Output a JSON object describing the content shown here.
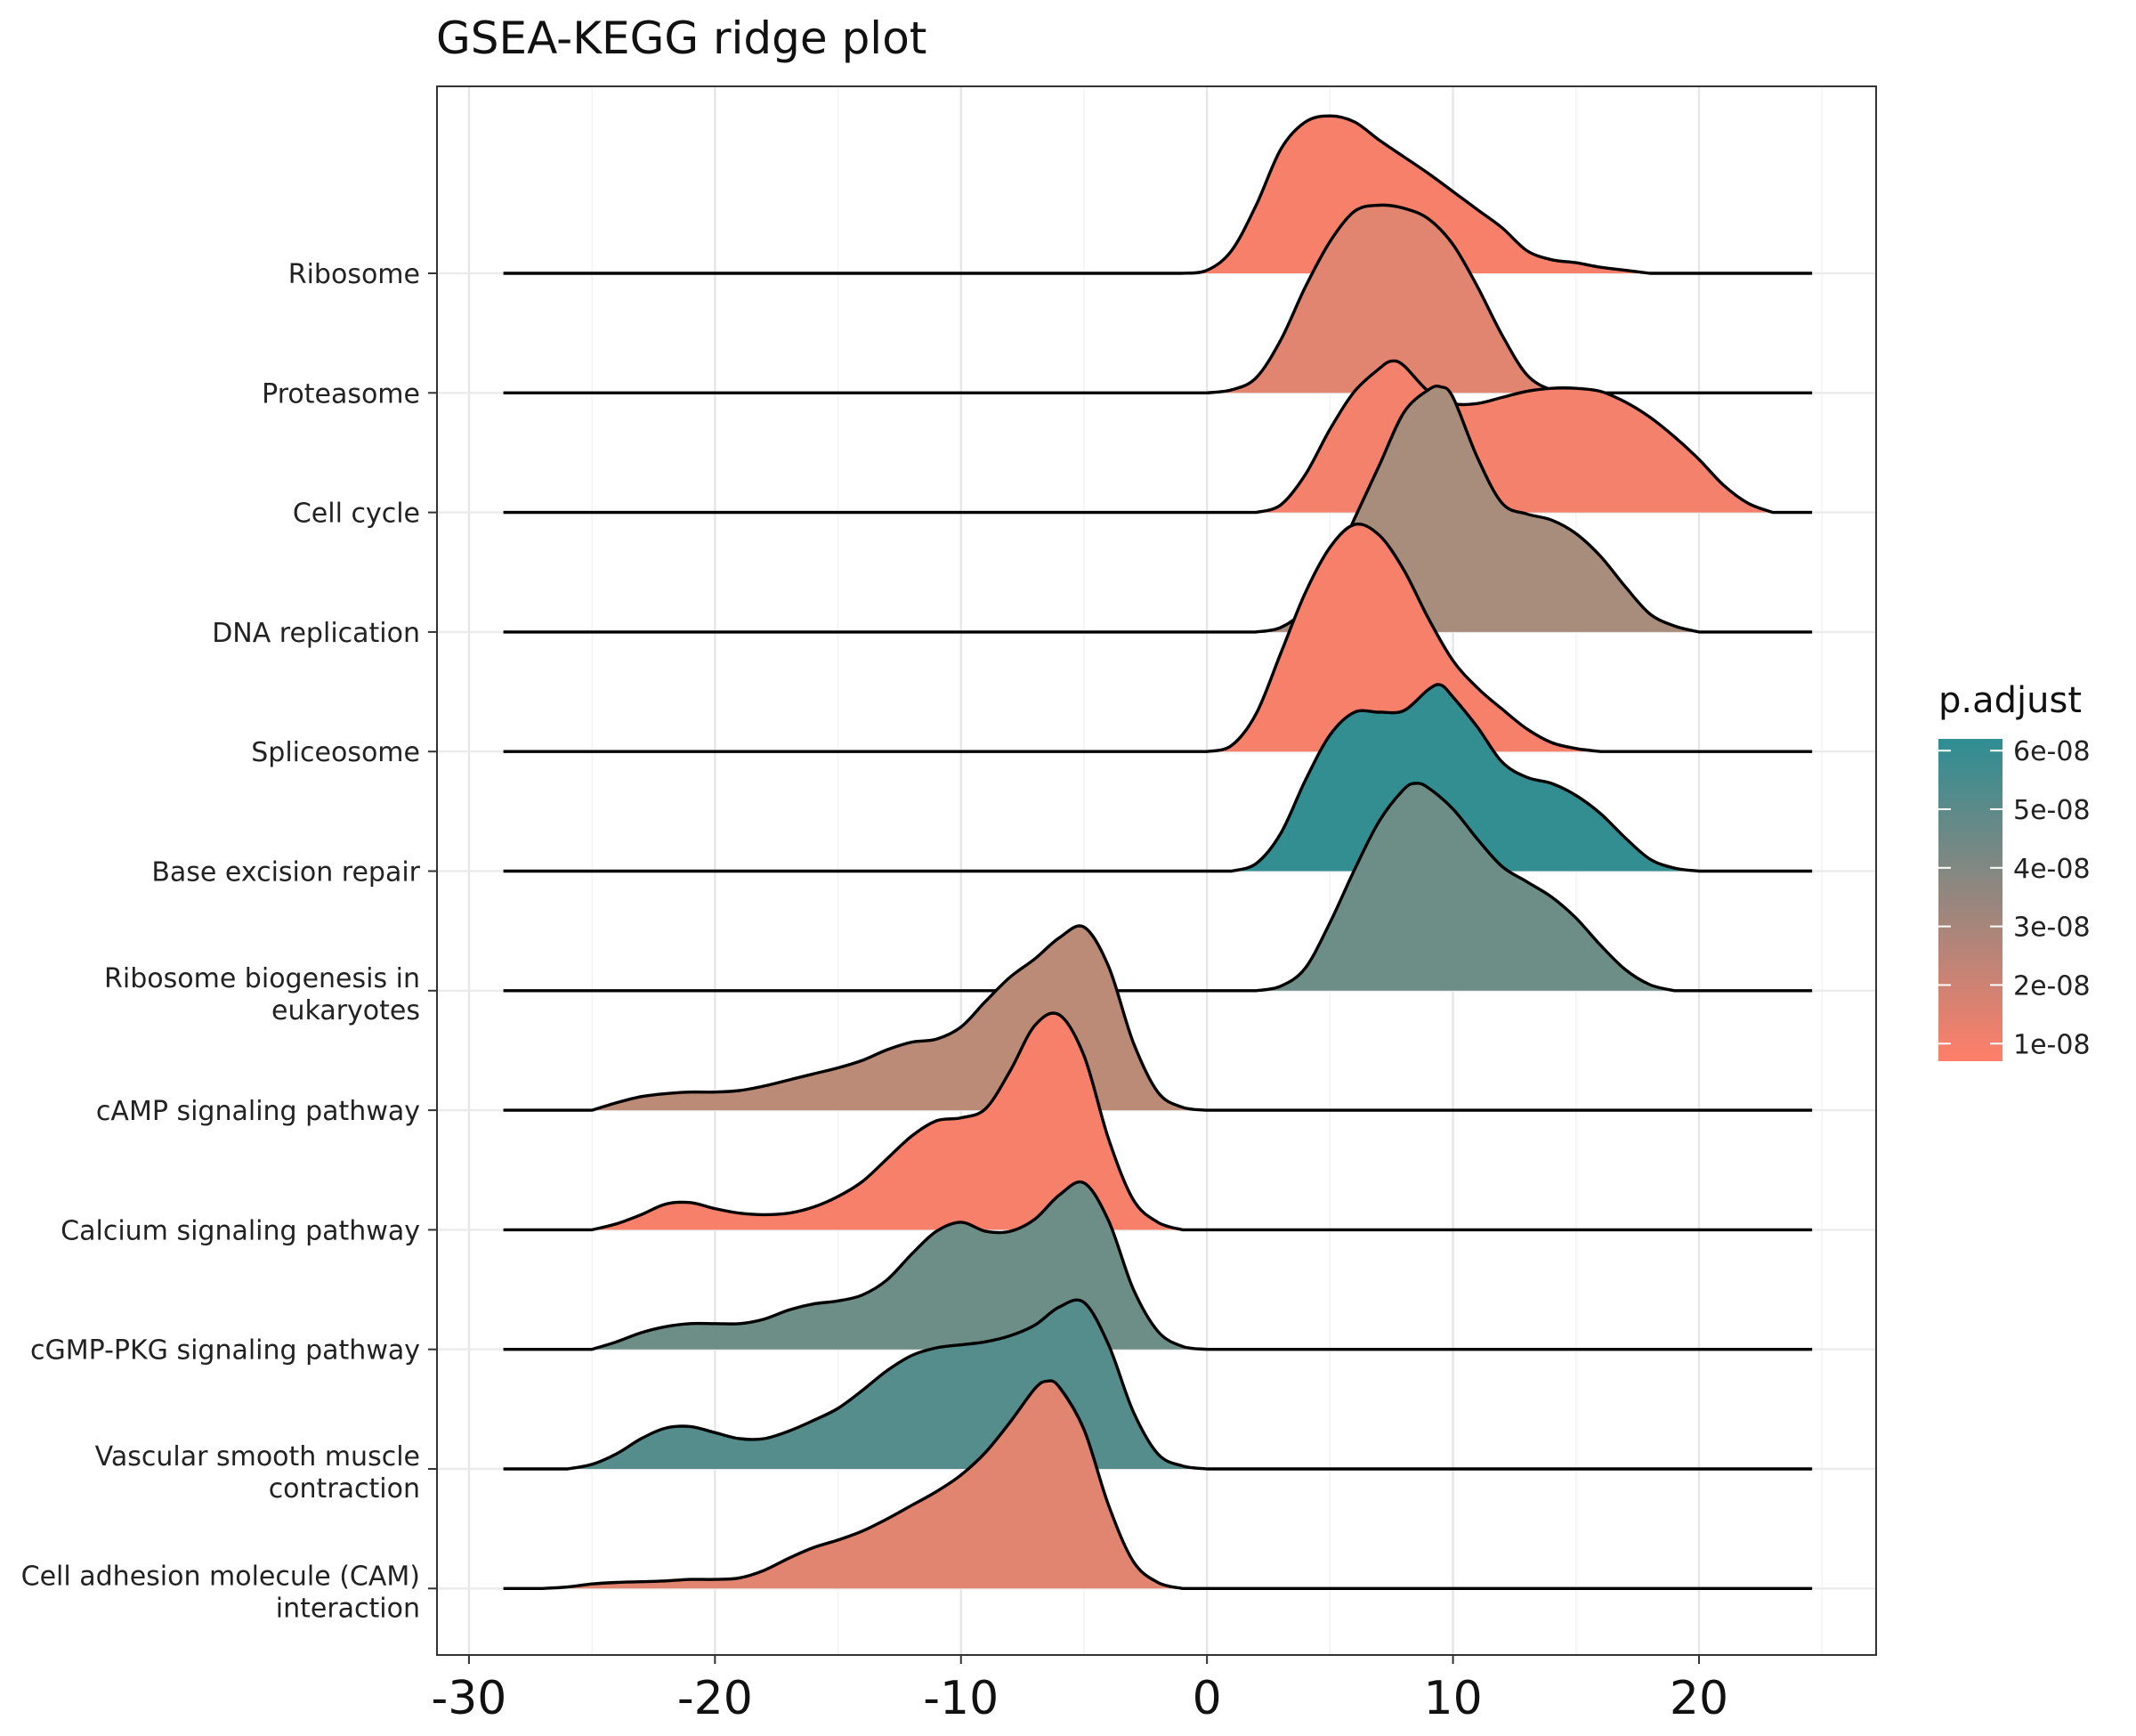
{
  "chart_data": {
    "type": "ridge",
    "title": "GSEA-KEGG ridge plot",
    "xlabel": "",
    "ylabel": "",
    "xlim": [
      -31.3,
      27.2
    ],
    "x_ticks": [
      -30,
      -20,
      -10,
      0,
      10,
      20
    ],
    "x_tick_labels": [
      "-30",
      "-20",
      "-10",
      "0",
      "10",
      "20"
    ],
    "x_range_lines": [
      -28.6,
      24.6
    ],
    "grid": true,
    "legend": {
      "title": "p.adjust",
      "placement": "right",
      "ticks": [
        6e-08,
        5e-08,
        4e-08,
        3e-08,
        2e-08,
        1e-08
      ],
      "tick_labels": [
        "6e-08",
        "5e-08",
        "4e-08",
        "3e-08",
        "2e-08",
        "1e-08"
      ],
      "range": [
        7e-09,
        6.2e-08
      ],
      "color_low": "#FF7F69",
      "color_high": "#2E8E93"
    },
    "categories": [
      "Ribosome",
      "Proteasome",
      "Cell cycle",
      "DNA replication",
      "Spliceosome",
      "Base excision repair",
      "Ribosome biogenesis in\neukaryotes",
      "cAMP signaling pathway",
      "Calcium signaling pathway",
      "cGMP-PKG signaling pathway",
      "Vascular smooth muscle\ncontraction",
      "Cell adhesion molecule (CAM)\ninteraction"
    ],
    "series": [
      {
        "category": "Ribosome",
        "p_adjust": 1e-08,
        "density": [
          [
            -1,
            0
          ],
          [
            0,
            0.02
          ],
          [
            1,
            0.15
          ],
          [
            2,
            0.45
          ],
          [
            3,
            0.82
          ],
          [
            4,
            1.0
          ],
          [
            5,
            1.04
          ],
          [
            6,
            1.0
          ],
          [
            7,
            0.88
          ],
          [
            8,
            0.77
          ],
          [
            9,
            0.66
          ],
          [
            10,
            0.54
          ],
          [
            11,
            0.42
          ],
          [
            12,
            0.3
          ],
          [
            13,
            0.15
          ],
          [
            14,
            0.09
          ],
          [
            15,
            0.07
          ],
          [
            16,
            0.04
          ],
          [
            17,
            0.02
          ],
          [
            18,
            0.0
          ]
        ]
      },
      {
        "category": "Proteasome",
        "p_adjust": 1.8e-08,
        "density": [
          [
            0,
            0
          ],
          [
            1,
            0.02
          ],
          [
            2,
            0.1
          ],
          [
            3,
            0.35
          ],
          [
            4,
            0.7
          ],
          [
            5,
            1.0
          ],
          [
            6,
            1.2
          ],
          [
            7,
            1.24
          ],
          [
            8,
            1.22
          ],
          [
            9,
            1.15
          ],
          [
            10,
            0.98
          ],
          [
            11,
            0.7
          ],
          [
            12,
            0.38
          ],
          [
            13,
            0.12
          ],
          [
            14,
            0.02
          ],
          [
            15,
            0.0
          ]
        ]
      },
      {
        "category": "Cell cycle",
        "p_adjust": 1.1e-08,
        "density": [
          [
            2,
            0
          ],
          [
            3,
            0.05
          ],
          [
            4,
            0.25
          ],
          [
            5,
            0.55
          ],
          [
            6,
            0.8
          ],
          [
            7,
            0.95
          ],
          [
            7.5,
            1.0
          ],
          [
            8,
            0.97
          ],
          [
            9,
            0.8
          ],
          [
            10,
            0.72
          ],
          [
            11,
            0.72
          ],
          [
            12,
            0.76
          ],
          [
            13,
            0.8
          ],
          [
            14,
            0.82
          ],
          [
            15,
            0.82
          ],
          [
            16,
            0.8
          ],
          [
            17,
            0.73
          ],
          [
            18,
            0.63
          ],
          [
            19,
            0.5
          ],
          [
            20,
            0.35
          ],
          [
            21,
            0.18
          ],
          [
            22,
            0.06
          ],
          [
            23,
            0.0
          ]
        ]
      },
      {
        "category": "DNA replication",
        "p_adjust": 3.7e-08,
        "density": [
          [
            2,
            0
          ],
          [
            3,
            0.03
          ],
          [
            4,
            0.15
          ],
          [
            5,
            0.4
          ],
          [
            6,
            0.75
          ],
          [
            7,
            1.1
          ],
          [
            8,
            1.45
          ],
          [
            9,
            1.6
          ],
          [
            9.5,
            1.62
          ],
          [
            10,
            1.55
          ],
          [
            11,
            1.15
          ],
          [
            12,
            0.85
          ],
          [
            13,
            0.78
          ],
          [
            14,
            0.74
          ],
          [
            15,
            0.65
          ],
          [
            16,
            0.5
          ],
          [
            17,
            0.3
          ],
          [
            18,
            0.12
          ],
          [
            19,
            0.04
          ],
          [
            20,
            0.0
          ]
        ]
      },
      {
        "category": "Spliceosome",
        "p_adjust": 1e-08,
        "density": [
          [
            0,
            0
          ],
          [
            1,
            0.04
          ],
          [
            2,
            0.25
          ],
          [
            3,
            0.65
          ],
          [
            4,
            1.05
          ],
          [
            5,
            1.35
          ],
          [
            6,
            1.5
          ],
          [
            7,
            1.43
          ],
          [
            8,
            1.2
          ],
          [
            9,
            0.88
          ],
          [
            10,
            0.6
          ],
          [
            11,
            0.42
          ],
          [
            12,
            0.28
          ],
          [
            13,
            0.15
          ],
          [
            14,
            0.06
          ],
          [
            15,
            0.02
          ],
          [
            16,
            0.0
          ]
        ]
      },
      {
        "category": "Base excision repair",
        "p_adjust": 6.1e-08,
        "density": [
          [
            1,
            0
          ],
          [
            2,
            0.05
          ],
          [
            3,
            0.25
          ],
          [
            4,
            0.6
          ],
          [
            5,
            0.9
          ],
          [
            6,
            1.05
          ],
          [
            7,
            1.05
          ],
          [
            8,
            1.06
          ],
          [
            9,
            1.2
          ],
          [
            9.5,
            1.23
          ],
          [
            10,
            1.15
          ],
          [
            11,
            0.95
          ],
          [
            12,
            0.72
          ],
          [
            13,
            0.62
          ],
          [
            14,
            0.58
          ],
          [
            15,
            0.5
          ],
          [
            16,
            0.38
          ],
          [
            17,
            0.22
          ],
          [
            18,
            0.08
          ],
          [
            19,
            0.02
          ],
          [
            20,
            0.0
          ]
        ]
      },
      {
        "category": "Ribosome biogenesis in\neukaryotes",
        "p_adjust": 4.9e-08,
        "density": [
          [
            2,
            0
          ],
          [
            3,
            0.03
          ],
          [
            4,
            0.15
          ],
          [
            5,
            0.45
          ],
          [
            6,
            0.8
          ],
          [
            7,
            1.12
          ],
          [
            8,
            1.33
          ],
          [
            8.5,
            1.37
          ],
          [
            9,
            1.34
          ],
          [
            10,
            1.2
          ],
          [
            11,
            1.0
          ],
          [
            12,
            0.82
          ],
          [
            13,
            0.72
          ],
          [
            14,
            0.62
          ],
          [
            15,
            0.48
          ],
          [
            16,
            0.3
          ],
          [
            17,
            0.14
          ],
          [
            18,
            0.04
          ],
          [
            19,
            0.0
          ]
        ]
      },
      {
        "category": "cAMP signaling pathway",
        "p_adjust": 3.2e-08,
        "density": [
          [
            -25,
            0
          ],
          [
            -24,
            0.05
          ],
          [
            -23,
            0.09
          ],
          [
            -22,
            0.11
          ],
          [
            -21,
            0.12
          ],
          [
            -20,
            0.12
          ],
          [
            -19,
            0.13
          ],
          [
            -18,
            0.16
          ],
          [
            -17,
            0.2
          ],
          [
            -16,
            0.24
          ],
          [
            -15,
            0.28
          ],
          [
            -14,
            0.33
          ],
          [
            -13,
            0.4
          ],
          [
            -12,
            0.45
          ],
          [
            -11,
            0.47
          ],
          [
            -10,
            0.55
          ],
          [
            -9,
            0.72
          ],
          [
            -8,
            0.88
          ],
          [
            -7,
            1.0
          ],
          [
            -6,
            1.14
          ],
          [
            -5,
            1.21
          ],
          [
            -4,
            0.95
          ],
          [
            -3,
            0.45
          ],
          [
            -2,
            0.12
          ],
          [
            -1,
            0.02
          ],
          [
            0,
            0.0
          ]
        ]
      },
      {
        "category": "Calcium signaling pathway",
        "p_adjust": 1e-08,
        "density": [
          [
            -25,
            0
          ],
          [
            -24,
            0.04
          ],
          [
            -23,
            0.1
          ],
          [
            -22,
            0.17
          ],
          [
            -21,
            0.18
          ],
          [
            -20,
            0.14
          ],
          [
            -19,
            0.11
          ],
          [
            -18,
            0.1
          ],
          [
            -17,
            0.11
          ],
          [
            -16,
            0.15
          ],
          [
            -15,
            0.22
          ],
          [
            -14,
            0.32
          ],
          [
            -13,
            0.47
          ],
          [
            -12,
            0.62
          ],
          [
            -11,
            0.72
          ],
          [
            -10,
            0.74
          ],
          [
            -9,
            0.8
          ],
          [
            -8,
            1.05
          ],
          [
            -7,
            1.35
          ],
          [
            -6,
            1.42
          ],
          [
            -5,
            1.15
          ],
          [
            -4,
            0.6
          ],
          [
            -3,
            0.2
          ],
          [
            -2,
            0.05
          ],
          [
            -1,
            0.0
          ]
        ]
      },
      {
        "category": "cGMP-PKG signaling pathway",
        "p_adjust": 4.9e-08,
        "density": [
          [
            -25,
            0
          ],
          [
            -24,
            0.05
          ],
          [
            -23,
            0.11
          ],
          [
            -22,
            0.15
          ],
          [
            -21,
            0.17
          ],
          [
            -20,
            0.17
          ],
          [
            -19,
            0.17
          ],
          [
            -18,
            0.2
          ],
          [
            -17,
            0.26
          ],
          [
            -16,
            0.3
          ],
          [
            -15,
            0.32
          ],
          [
            -14,
            0.36
          ],
          [
            -13,
            0.46
          ],
          [
            -12,
            0.63
          ],
          [
            -11,
            0.78
          ],
          [
            -10,
            0.84
          ],
          [
            -9,
            0.78
          ],
          [
            -8,
            0.78
          ],
          [
            -7,
            0.86
          ],
          [
            -6,
            1.02
          ],
          [
            -5,
            1.1
          ],
          [
            -4,
            0.85
          ],
          [
            -3,
            0.4
          ],
          [
            -2,
            0.12
          ],
          [
            -1,
            0.02
          ],
          [
            0,
            0.0
          ]
        ]
      },
      {
        "category": "Vascular smooth muscle\ncontraction",
        "p_adjust": 5.4e-08,
        "density": [
          [
            -26,
            0
          ],
          [
            -25,
            0.03
          ],
          [
            -24,
            0.1
          ],
          [
            -23,
            0.2
          ],
          [
            -22,
            0.27
          ],
          [
            -21,
            0.28
          ],
          [
            -20,
            0.24
          ],
          [
            -19,
            0.2
          ],
          [
            -18,
            0.2
          ],
          [
            -17,
            0.25
          ],
          [
            -16,
            0.32
          ],
          [
            -15,
            0.4
          ],
          [
            -14,
            0.52
          ],
          [
            -13,
            0.65
          ],
          [
            -12,
            0.75
          ],
          [
            -11,
            0.8
          ],
          [
            -10,
            0.82
          ],
          [
            -9,
            0.84
          ],
          [
            -8,
            0.88
          ],
          [
            -7,
            0.95
          ],
          [
            -6,
            1.07
          ],
          [
            -5,
            1.1
          ],
          [
            -4,
            0.82
          ],
          [
            -3,
            0.38
          ],
          [
            -2,
            0.1
          ],
          [
            -1,
            0.02
          ],
          [
            0,
            0.0
          ]
        ]
      },
      {
        "category": "Cell adhesion molecule (CAM)\ninteraction",
        "p_adjust": 1.8e-08,
        "density": [
          [
            -27,
            0
          ],
          [
            -26,
            0.01
          ],
          [
            -25,
            0.03
          ],
          [
            -24,
            0.04
          ],
          [
            -23,
            0.045
          ],
          [
            -22,
            0.05
          ],
          [
            -21,
            0.06
          ],
          [
            -20,
            0.06
          ],
          [
            -19,
            0.07
          ],
          [
            -18,
            0.12
          ],
          [
            -17,
            0.2
          ],
          [
            -16,
            0.27
          ],
          [
            -15,
            0.32
          ],
          [
            -14,
            0.38
          ],
          [
            -13,
            0.46
          ],
          [
            -12,
            0.55
          ],
          [
            -11,
            0.64
          ],
          [
            -10,
            0.75
          ],
          [
            -9,
            0.9
          ],
          [
            -8,
            1.1
          ],
          [
            -7,
            1.32
          ],
          [
            -6.5,
            1.37
          ],
          [
            -6,
            1.33
          ],
          [
            -5,
            1.05
          ],
          [
            -4,
            0.55
          ],
          [
            -3,
            0.18
          ],
          [
            -2,
            0.04
          ],
          [
            -1,
            0.0
          ]
        ]
      }
    ]
  }
}
